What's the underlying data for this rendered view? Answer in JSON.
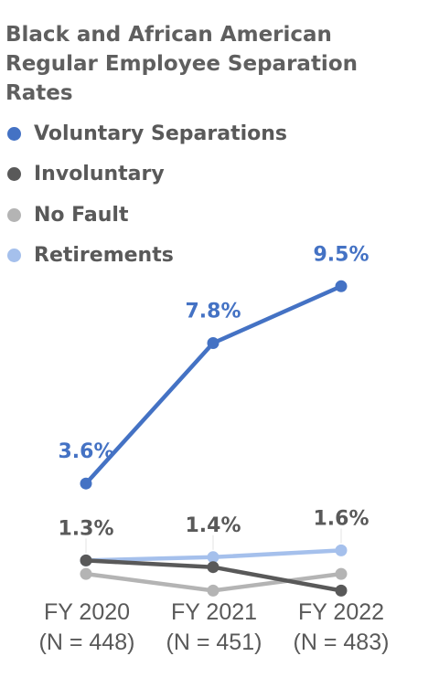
{
  "chart_data": {
    "type": "line",
    "title": "Black and African American Regular Employee Separation Rates",
    "categories": [
      "FY 2020",
      "FY 2021",
      "FY 2022"
    ],
    "category_notes": [
      "(N = 448)",
      "(N = 451)",
      "(N = 483)"
    ],
    "series": [
      {
        "name": "Voluntary Separations",
        "values": [
          3.6,
          7.8,
          9.5
        ],
        "labels": [
          "3.6%",
          "7.8%",
          "9.5%"
        ],
        "color": "#4472c4"
      },
      {
        "name": "Involuntary",
        "values": [
          1.3,
          1.1,
          0.4
        ],
        "color": "#595959"
      },
      {
        "name": "No Fault",
        "values": [
          0.9,
          0.4,
          0.9
        ],
        "color": "#b4b4b4"
      },
      {
        "name": "Retirements",
        "values": [
          1.3,
          1.4,
          1.6
        ],
        "labels": [
          "1.3%",
          "1.4%",
          "1.6%"
        ],
        "color": "#a5c0ec"
      }
    ],
    "ylim": [
      0,
      10
    ],
    "grid": false,
    "legend_position": "top-left"
  }
}
